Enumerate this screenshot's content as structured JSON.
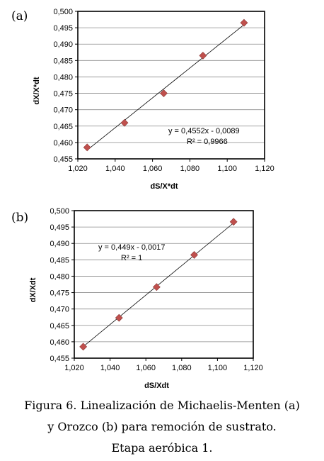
{
  "chart_data": [
    {
      "type": "scatter",
      "panel_label": "(a)",
      "xlabel": "dS/X*dt",
      "ylabel": "dX/X*dt",
      "xlim": [
        1.02,
        1.12
      ],
      "ylim": [
        0.455,
        0.5
      ],
      "x_ticks": [
        "1,020",
        "1,040",
        "1,060",
        "1,080",
        "1,100",
        "1,120"
      ],
      "y_ticks": [
        "0,455",
        "0,460",
        "0,465",
        "0,470",
        "0,475",
        "0,480",
        "0,485",
        "0,490",
        "0,495",
        "0,500"
      ],
      "grid": "horizontal",
      "marker": "diamond",
      "marker_color": "#C0504D",
      "trendline": {
        "slope": 0.4552,
        "intercept": -0.0089
      },
      "equation": "y = 0,4552x - 0,0089",
      "r2": "R² = 0,9966",
      "points": [
        {
          "x": 1.025,
          "y": 0.4585
        },
        {
          "x": 1.045,
          "y": 0.466
        },
        {
          "x": 1.066,
          "y": 0.475
        },
        {
          "x": 1.087,
          "y": 0.4865
        },
        {
          "x": 1.109,
          "y": 0.4965
        }
      ]
    },
    {
      "type": "scatter",
      "panel_label": "(b)",
      "xlabel": "dS/Xdt",
      "ylabel": "dX/Xdt",
      "xlim": [
        1.02,
        1.12
      ],
      "ylim": [
        0.455,
        0.5
      ],
      "x_ticks": [
        "1,020",
        "1,040",
        "1,060",
        "1,080",
        "1,100",
        "1,120"
      ],
      "y_ticks": [
        "0,455",
        "0,460",
        "0,465",
        "0,470",
        "0,475",
        "0,480",
        "0,485",
        "0,490",
        "0,495",
        "0,500"
      ],
      "grid": "horizontal",
      "marker": "diamond",
      "marker_color": "#C0504D",
      "trendline": {
        "slope": 0.449,
        "intercept": -0.0017
      },
      "equation": "y = 0,449x - 0,0017",
      "r2": "R² = 1",
      "points": [
        {
          "x": 1.025,
          "y": 0.4585
        },
        {
          "x": 1.045,
          "y": 0.4673
        },
        {
          "x": 1.066,
          "y": 0.4767
        },
        {
          "x": 1.087,
          "y": 0.4865
        },
        {
          "x": 1.109,
          "y": 0.4966
        }
      ]
    }
  ],
  "caption": {
    "line1": "Figura 6. Linealización de Michaelis-Menten (a)",
    "line2": "y Orozco (b) para remoción de sustrato.",
    "line3": "Etapa aeróbica  1."
  }
}
